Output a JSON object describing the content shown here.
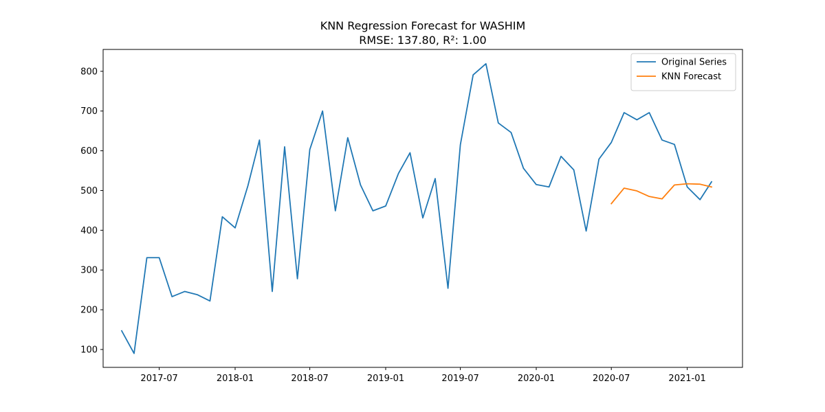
{
  "chart_data": {
    "type": "line",
    "title": "KNN Regression Forecast for WASHIM",
    "subtitle": "RMSE: 137.80, R²: 1.00",
    "xlabel": "",
    "ylabel": "",
    "xlim": [
      "2017-02-15",
      "2021-05-15"
    ],
    "ylim": [
      55,
      855
    ],
    "x_ticks": [
      "2017-07-01",
      "2018-01-01",
      "2018-07-01",
      "2019-01-01",
      "2019-07-01",
      "2020-01-01",
      "2020-07-01",
      "2021-01-01"
    ],
    "x_tick_labels": [
      "2017-07",
      "2018-01",
      "2018-07",
      "2019-01",
      "2019-07",
      "2020-01",
      "2020-07",
      "2021-01"
    ],
    "y_ticks": [
      100,
      200,
      300,
      400,
      500,
      600,
      700,
      800
    ],
    "y_tick_labels": [
      "100",
      "200",
      "300",
      "400",
      "500",
      "600",
      "700",
      "800"
    ],
    "grid": false,
    "legend_position": "top-right",
    "series": [
      {
        "name": "Original Series",
        "color": "#1f77b4",
        "points": [
          [
            "2017-04-01",
            147
          ],
          [
            "2017-05-01",
            90
          ],
          [
            "2017-06-01",
            331
          ],
          [
            "2017-07-01",
            331
          ],
          [
            "2017-08-01",
            233
          ],
          [
            "2017-09-01",
            246
          ],
          [
            "2017-10-01",
            238
          ],
          [
            "2017-11-01",
            222
          ],
          [
            "2017-12-01",
            434
          ],
          [
            "2018-01-01",
            406
          ],
          [
            "2018-02-01",
            512
          ],
          [
            "2018-03-01",
            627
          ],
          [
            "2018-04-01",
            246
          ],
          [
            "2018-05-01",
            610
          ],
          [
            "2018-06-01",
            278
          ],
          [
            "2018-07-01",
            603
          ],
          [
            "2018-08-01",
            700
          ],
          [
            "2018-09-01",
            449
          ],
          [
            "2018-10-01",
            633
          ],
          [
            "2018-11-01",
            514
          ],
          [
            "2018-12-01",
            449
          ],
          [
            "2019-01-01",
            461
          ],
          [
            "2019-02-01",
            543
          ],
          [
            "2019-03-01",
            595
          ],
          [
            "2019-04-01",
            431
          ],
          [
            "2019-05-01",
            530
          ],
          [
            "2019-06-01",
            254
          ],
          [
            "2019-07-01",
            615
          ],
          [
            "2019-08-01",
            791
          ],
          [
            "2019-09-01",
            819
          ],
          [
            "2019-10-01",
            670
          ],
          [
            "2019-11-01",
            646
          ],
          [
            "2019-12-01",
            556
          ],
          [
            "2020-01-01",
            515
          ],
          [
            "2020-02-01",
            509
          ],
          [
            "2020-03-01",
            586
          ],
          [
            "2020-04-01",
            552
          ],
          [
            "2020-05-01",
            398
          ],
          [
            "2020-06-01",
            579
          ],
          [
            "2020-07-01",
            621
          ],
          [
            "2020-08-01",
            696
          ],
          [
            "2020-09-01",
            678
          ],
          [
            "2020-10-01",
            696
          ],
          [
            "2020-11-01",
            627
          ],
          [
            "2020-12-01",
            616
          ],
          [
            "2021-01-01",
            509
          ],
          [
            "2021-02-01",
            477
          ],
          [
            "2021-03-01",
            522
          ]
        ]
      },
      {
        "name": "KNN Forecast",
        "color": "#ff7f0e",
        "points": [
          [
            "2020-07-01",
            467
          ],
          [
            "2020-08-01",
            506
          ],
          [
            "2020-09-01",
            499
          ],
          [
            "2020-10-01",
            485
          ],
          [
            "2020-11-01",
            479
          ],
          [
            "2020-12-01",
            514
          ],
          [
            "2021-01-01",
            517
          ],
          [
            "2021-02-01",
            516
          ],
          [
            "2021-03-01",
            509
          ]
        ]
      }
    ]
  }
}
